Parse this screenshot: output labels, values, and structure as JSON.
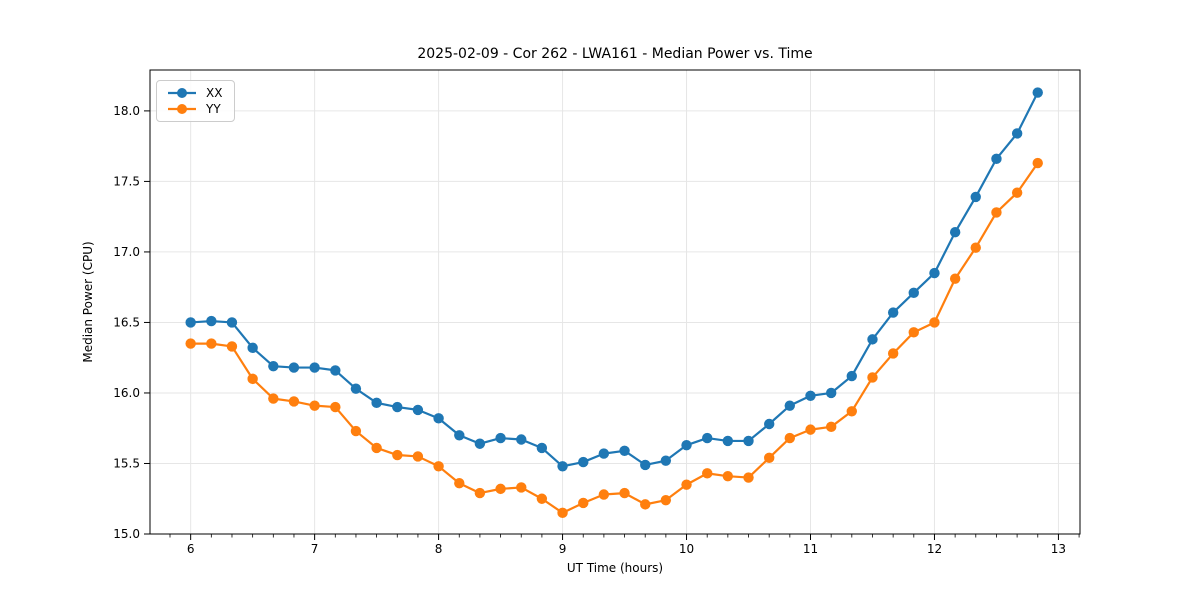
{
  "figure": {
    "title": "2025-02-09 - Cor 262 - LWA161 - Median Power vs. Time"
  },
  "chart_data": {
    "type": "line",
    "title": "2025-02-09 - Cor 262 - LWA161 - Median Power vs. Time",
    "xlabel": "UT Time (hours)",
    "ylabel": "Median Power (CPU)",
    "xlim": [
      5.672,
      13.174
    ],
    "ylim": [
      15.0,
      18.29
    ],
    "xticks": [
      6,
      7,
      8,
      9,
      10,
      11,
      12,
      13
    ],
    "xtick_labels": [
      "6",
      "7",
      "8",
      "9",
      "10",
      "11",
      "12",
      "13"
    ],
    "x_minor_step": 0.1666667,
    "yticks": [
      15.0,
      15.5,
      16.0,
      16.5,
      17.0,
      17.5,
      18.0
    ],
    "ytick_labels": [
      "15.0",
      "15.5",
      "16.0",
      "16.5",
      "17.0",
      "17.5",
      "18.0"
    ],
    "grid": true,
    "grid_color": "#e6e6e6",
    "legend_position": "upper left",
    "x": [
      6.0,
      6.167,
      6.333,
      6.5,
      6.667,
      6.833,
      7.0,
      7.167,
      7.333,
      7.5,
      7.667,
      7.833,
      8.0,
      8.167,
      8.333,
      8.5,
      8.667,
      8.833,
      9.0,
      9.167,
      9.333,
      9.5,
      9.667,
      9.833,
      10.0,
      10.167,
      10.333,
      10.5,
      10.667,
      10.833,
      11.0,
      11.167,
      11.333,
      11.5,
      11.667,
      11.833,
      12.0,
      12.167,
      12.333,
      12.5,
      12.667,
      12.833
    ],
    "series": [
      {
        "name": "XX",
        "color": "#1f77b4",
        "values": [
          16.5,
          16.51,
          16.5,
          16.32,
          16.19,
          16.18,
          16.18,
          16.16,
          16.03,
          15.93,
          15.9,
          15.88,
          15.82,
          15.7,
          15.64,
          15.68,
          15.67,
          15.61,
          15.48,
          15.51,
          15.57,
          15.59,
          15.49,
          15.52,
          15.63,
          15.68,
          15.66,
          15.66,
          15.78,
          15.91,
          15.98,
          16.0,
          16.12,
          16.38,
          16.57,
          16.71,
          16.85,
          17.14,
          17.39,
          17.66,
          17.84,
          18.13
        ]
      },
      {
        "name": "YY",
        "color": "#ff7f0e",
        "values": [
          16.35,
          16.35,
          16.33,
          16.1,
          15.96,
          15.94,
          15.91,
          15.9,
          15.73,
          15.61,
          15.56,
          15.55,
          15.48,
          15.36,
          15.29,
          15.32,
          15.33,
          15.25,
          15.15,
          15.22,
          15.28,
          15.29,
          15.21,
          15.24,
          15.35,
          15.43,
          15.41,
          15.4,
          15.54,
          15.68,
          15.74,
          15.76,
          15.87,
          16.11,
          16.28,
          16.43,
          16.5,
          16.81,
          17.03,
          17.28,
          17.42,
          17.63
        ]
      }
    ]
  }
}
